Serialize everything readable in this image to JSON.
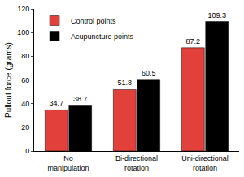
{
  "chart_data": {
    "type": "bar",
    "y_label": "Pullout force (grams)",
    "categories": [
      "No manipulation",
      "Bi-directional rotation",
      "Uni-directional rotation"
    ],
    "series": [
      {
        "name": "Control points",
        "color": "#e2403a",
        "values": [
          34.7,
          51.8,
          87.2
        ]
      },
      {
        "name": "Acupuncture points",
        "color": "#000000",
        "values": [
          38.7,
          60.5,
          109.3
        ]
      }
    ],
    "ylim": [
      0,
      120
    ],
    "yticks": [
      0,
      20,
      40,
      60,
      80,
      100,
      120
    ],
    "grid": false,
    "legend": "upper left",
    "data_labels": true
  }
}
